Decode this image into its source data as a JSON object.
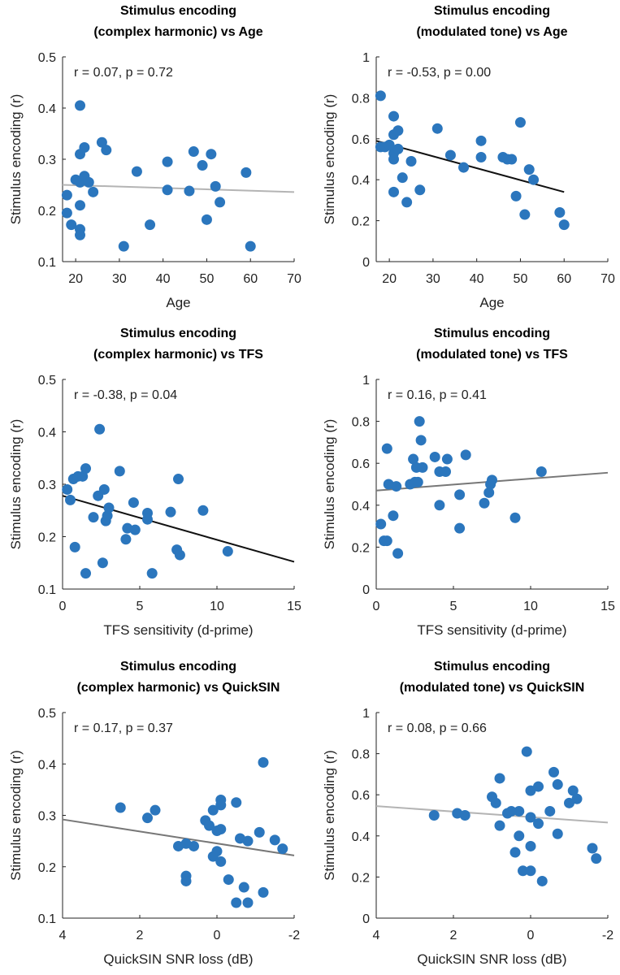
{
  "chart_data": [
    {
      "type": "scatter",
      "title": [
        "Stimulus encoding",
        "(complex harmonic) vs Age"
      ],
      "annotation": "r = 0.07, p = 0.72",
      "xlabel": "Age",
      "ylabel": "Stimulus encoding (r)",
      "color": "#2b76bd",
      "x": [
        18,
        18,
        19,
        21,
        21,
        21,
        21,
        21,
        21,
        22,
        22,
        23,
        24,
        26,
        27,
        31,
        34,
        37,
        41,
        41,
        46,
        47,
        49,
        50,
        51,
        52,
        53,
        59,
        60,
        20
      ],
      "values": [
        0.23,
        0.195,
        0.172,
        0.405,
        0.31,
        0.255,
        0.21,
        0.163,
        0.152,
        0.267,
        0.323,
        0.255,
        0.236,
        0.333,
        0.318,
        0.13,
        0.276,
        0.172,
        0.295,
        0.24,
        0.238,
        0.315,
        0.288,
        0.182,
        0.31,
        0.247,
        0.216,
        0.274,
        0.13,
        0.26
      ],
      "trend": {
        "x": [
          17,
          70
        ],
        "y": [
          0.25,
          0.236
        ],
        "color": "#b4b4b4"
      },
      "xlim": [
        17,
        70
      ],
      "ylim": [
        0.1,
        0.5
      ],
      "xticks": [
        20,
        30,
        40,
        50,
        60,
        70
      ],
      "yticks": [
        0.1,
        0.2,
        0.3,
        0.4,
        0.5
      ]
    },
    {
      "type": "scatter",
      "title": [
        "Stimulus encoding",
        "(modulated tone) vs Age"
      ],
      "annotation": "r = -0.53, p = 0.00",
      "xlabel": "Age",
      "ylabel": "Stimulus encoding (r)",
      "color": "#2b76bd",
      "x": [
        18,
        18,
        19,
        21,
        21,
        21,
        21,
        21,
        22,
        22,
        23,
        24,
        25,
        27,
        31,
        34,
        37,
        41,
        41,
        46,
        47,
        48,
        49,
        50,
        51,
        52,
        53,
        59,
        60,
        20
      ],
      "values": [
        0.81,
        0.56,
        0.56,
        0.71,
        0.62,
        0.53,
        0.5,
        0.34,
        0.64,
        0.55,
        0.41,
        0.29,
        0.49,
        0.35,
        0.65,
        0.52,
        0.46,
        0.59,
        0.51,
        0.51,
        0.5,
        0.5,
        0.32,
        0.68,
        0.23,
        0.45,
        0.4,
        0.24,
        0.18,
        0.57
      ],
      "trend": {
        "x": [
          17,
          60
        ],
        "y": [
          0.59,
          0.34
        ],
        "color": "#111111"
      },
      "xlim": [
        17,
        70
      ],
      "ylim": [
        0,
        1
      ],
      "xticks": [
        20,
        30,
        40,
        50,
        60,
        70
      ],
      "yticks": [
        0,
        0.2,
        0.4,
        0.6,
        0.8,
        1
      ]
    },
    {
      "type": "scatter",
      "title": [
        "Stimulus encoding",
        "(complex harmonic) vs TFS"
      ],
      "annotation": "r = -0.38, p = 0.04",
      "xlabel": "TFS sensitivity (d-prime)",
      "ylabel": "Stimulus encoding (r)",
      "color": "#2b76bd",
      "x": [
        0.3,
        0.5,
        0.7,
        0.8,
        1,
        1.3,
        1.5,
        1.5,
        2,
        2.3,
        2.4,
        2.6,
        2.7,
        2.8,
        2.9,
        3,
        3.7,
        4.1,
        4.2,
        4.6,
        4.7,
        5.5,
        5.5,
        5.8,
        7,
        7.4,
        7.5,
        7.6,
        9.1,
        10.7
      ],
      "values": [
        0.29,
        0.27,
        0.31,
        0.18,
        0.315,
        0.315,
        0.33,
        0.13,
        0.237,
        0.278,
        0.405,
        0.15,
        0.29,
        0.23,
        0.24,
        0.255,
        0.325,
        0.195,
        0.216,
        0.265,
        0.213,
        0.245,
        0.233,
        0.13,
        0.247,
        0.175,
        0.31,
        0.165,
        0.25,
        0.172
      ],
      "trend": {
        "x": [
          0,
          15
        ],
        "y": [
          0.278,
          0.152
        ],
        "color": "#111111"
      },
      "xlim": [
        0,
        15
      ],
      "ylim": [
        0.1,
        0.5
      ],
      "xticks": [
        0,
        5,
        10,
        15
      ],
      "yticks": [
        0.1,
        0.2,
        0.3,
        0.4,
        0.5
      ]
    },
    {
      "type": "scatter",
      "title": [
        "Stimulus encoding",
        "(modulated tone) vs TFS"
      ],
      "annotation": "r = 0.16, p = 0.41",
      "xlabel": "TFS sensitivity (d-prime)",
      "ylabel": "Stimulus encoding (r)",
      "color": "#2b76bd",
      "x": [
        0.3,
        0.5,
        0.7,
        0.7,
        0.8,
        1.1,
        1.3,
        1.4,
        2.2,
        2.4,
        2.5,
        2.6,
        2.7,
        2.8,
        2.9,
        3,
        3.8,
        4.1,
        4.1,
        4.5,
        4.6,
        5.4,
        5.4,
        5.8,
        7,
        7.3,
        7.5,
        7.4,
        9,
        10.7
      ],
      "values": [
        0.31,
        0.23,
        0.67,
        0.23,
        0.5,
        0.35,
        0.49,
        0.17,
        0.5,
        0.62,
        0.51,
        0.58,
        0.51,
        0.8,
        0.71,
        0.58,
        0.63,
        0.4,
        0.56,
        0.56,
        0.62,
        0.45,
        0.29,
        0.64,
        0.41,
        0.46,
        0.52,
        0.5,
        0.34,
        0.56
      ],
      "trend": {
        "x": [
          0,
          15
        ],
        "y": [
          0.47,
          0.555
        ],
        "color": "#777777"
      },
      "xlim": [
        0,
        15
      ],
      "ylim": [
        0,
        1
      ],
      "xticks": [
        0,
        5,
        10,
        15
      ],
      "yticks": [
        0,
        0.2,
        0.4,
        0.6,
        0.8,
        1
      ]
    },
    {
      "type": "scatter",
      "title": [
        "Stimulus encoding",
        "(complex harmonic) vs QuickSIN"
      ],
      "annotation": "r = 0.17, p = 0.37",
      "xlabel": "QuickSIN SNR loss (dB)",
      "ylabel": "Stimulus encoding (r)",
      "color": "#2b76bd",
      "x": [
        2.5,
        1.8,
        1.6,
        1,
        0.8,
        0.8,
        0.8,
        0.6,
        0.3,
        0.2,
        0.1,
        0.1,
        0,
        -0.1,
        -0.1,
        -0.1,
        -0.1,
        -0.3,
        -0.5,
        -0.5,
        -0.6,
        -0.7,
        -0.8,
        -0.8,
        -1.1,
        -1.2,
        -1.2,
        -1.5,
        -1.7,
        0
      ],
      "values": [
        0.315,
        0.295,
        0.31,
        0.24,
        0.245,
        0.182,
        0.172,
        0.24,
        0.29,
        0.28,
        0.31,
        0.22,
        0.23,
        0.21,
        0.33,
        0.32,
        0.273,
        0.175,
        0.325,
        0.13,
        0.255,
        0.16,
        0.25,
        0.13,
        0.267,
        0.15,
        0.403,
        0.252,
        0.235,
        0.27
      ],
      "trend": {
        "x": [
          4,
          -2
        ],
        "y": [
          0.292,
          0.222
        ],
        "color": "#777777"
      },
      "xlim": [
        4,
        -2
      ],
      "ylim": [
        0.1,
        0.5
      ],
      "xticks": [
        4,
        2,
        0,
        -2
      ],
      "yticks": [
        0.1,
        0.2,
        0.3,
        0.4,
        0.5
      ]
    },
    {
      "type": "scatter",
      "title": [
        "Stimulus encoding",
        "(modulated tone) vs QuickSIN"
      ],
      "annotation": "r = 0.08, p = 0.66",
      "xlabel": "QuickSIN SNR loss (dB)",
      "ylabel": "Stimulus encoding (r)",
      "color": "#2b76bd",
      "x": [
        2.5,
        1.9,
        1.7,
        1,
        0.9,
        0.8,
        0.8,
        0.6,
        0.4,
        0.3,
        0.3,
        0.2,
        0.1,
        0,
        0,
        0,
        0,
        -0.2,
        -0.2,
        -0.3,
        -0.5,
        -0.6,
        -0.7,
        -0.7,
        -1,
        -1.1,
        -1.2,
        -1.6,
        -1.7,
        0.5
      ],
      "values": [
        0.5,
        0.51,
        0.5,
        0.59,
        0.56,
        0.68,
        0.45,
        0.51,
        0.32,
        0.52,
        0.4,
        0.23,
        0.81,
        0.49,
        0.62,
        0.35,
        0.23,
        0.46,
        0.64,
        0.18,
        0.52,
        0.71,
        0.65,
        0.41,
        0.56,
        0.62,
        0.58,
        0.34,
        0.29,
        0.52
      ],
      "trend": {
        "x": [
          4,
          -2
        ],
        "y": [
          0.545,
          0.465
        ],
        "color": "#b4b4b4"
      },
      "xlim": [
        4,
        -2
      ],
      "ylim": [
        0,
        1
      ],
      "xticks": [
        4,
        2,
        0,
        -2
      ],
      "yticks": [
        0,
        0.2,
        0.4,
        0.6,
        0.8,
        1
      ]
    }
  ]
}
